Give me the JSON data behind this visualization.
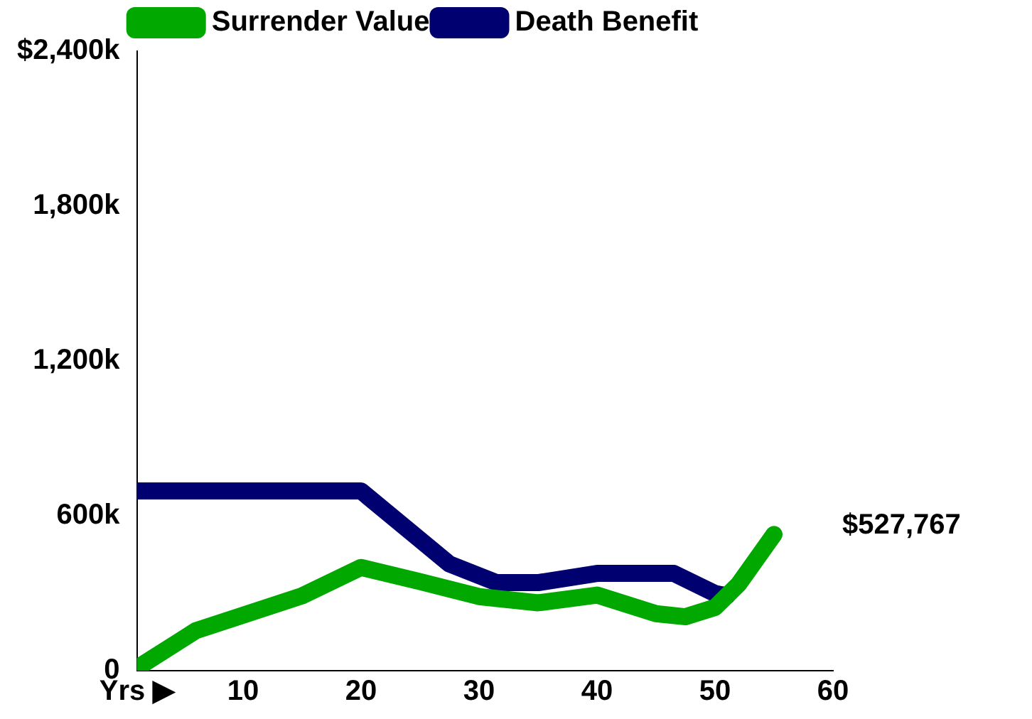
{
  "chart_data": {
    "type": "line",
    "x": [
      1,
      6,
      10,
      15,
      20,
      25,
      30,
      35,
      40,
      45,
      47.5,
      50,
      52,
      55
    ],
    "series": [
      {
        "name": "Surrender Value",
        "color": "#00a800",
        "values": [
          10000,
          155000,
          215000,
          290000,
          400000,
          345000,
          287000,
          263000,
          293000,
          221000,
          209000,
          245000,
          335000,
          527767
        ]
      },
      {
        "name": "Death Benefit",
        "color": "#000070",
        "x": [
          1,
          20,
          27.5,
          31.5,
          35,
          40,
          46.5,
          50,
          51
        ],
        "values": [
          696000,
          696000,
          413000,
          341000,
          341000,
          377000,
          377000,
          299000,
          290000
        ]
      }
    ],
    "xlim": [
      1,
      60
    ],
    "xticks": [
      {
        "value": 1,
        "label": "Yrs ▶"
      },
      10,
      20,
      30,
      40,
      50,
      60
    ],
    "ylim": [
      0,
      2400000
    ],
    "yticks": [
      {
        "value": 0,
        "label": "0"
      },
      {
        "value": 600000,
        "label": "600k"
      },
      {
        "value": 1200000,
        "label": "1,200k"
      },
      {
        "value": 1800000,
        "label": "1,800k"
      },
      {
        "value": 2400000,
        "label": "$2,400k"
      }
    ],
    "annotations": [
      {
        "text": "$527,767",
        "x": 55,
        "y": 527767
      }
    ],
    "grid": false,
    "legend": "top",
    "marker": "none",
    "line_style": "solid"
  }
}
